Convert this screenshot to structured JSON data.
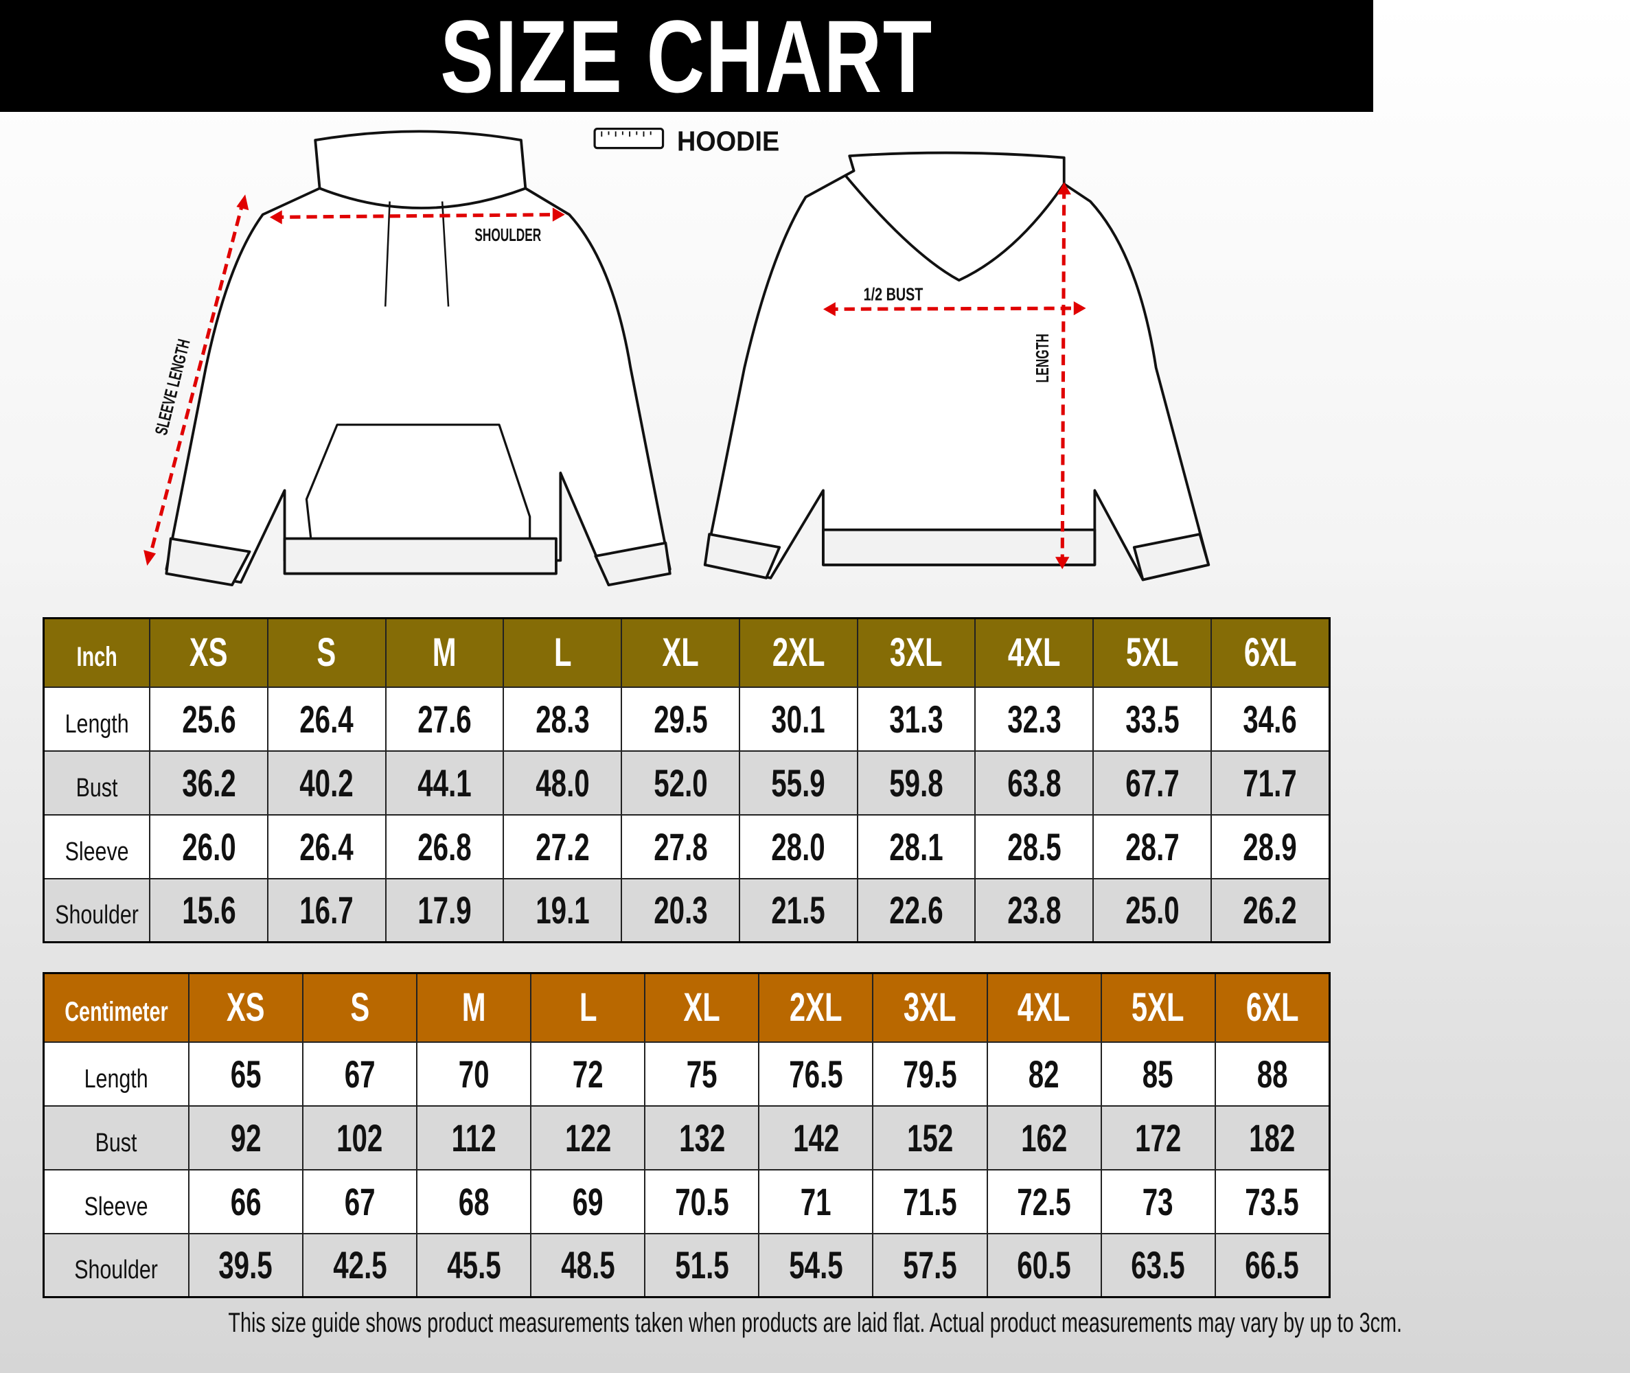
{
  "title": "SIZE CHART",
  "product": {
    "label": "HOODIE",
    "icon": "ruler-icon"
  },
  "diagram_labels": {
    "shoulder": "SHOULDER",
    "sleeve_length": "SLEEVE LENGTH",
    "half_bust": "1/2 BUST",
    "length": "LENGTH"
  },
  "colors": {
    "inch_header": "#856c06",
    "cm_header": "#b96800",
    "arrow": "#e00000"
  },
  "sizes": [
    "XS",
    "S",
    "M",
    "L",
    "XL",
    "2XL",
    "3XL",
    "4XL",
    "5XL",
    "6XL"
  ],
  "inch_table": {
    "unit": "Inch",
    "rows": [
      {
        "label": "Length",
        "values": [
          "25.6",
          "26.4",
          "27.6",
          "28.3",
          "29.5",
          "30.1",
          "31.3",
          "32.3",
          "33.5",
          "34.6"
        ]
      },
      {
        "label": "Bust",
        "values": [
          "36.2",
          "40.2",
          "44.1",
          "48.0",
          "52.0",
          "55.9",
          "59.8",
          "63.8",
          "67.7",
          "71.7"
        ]
      },
      {
        "label": "Sleeve",
        "values": [
          "26.0",
          "26.4",
          "26.8",
          "27.2",
          "27.8",
          "28.0",
          "28.1",
          "28.5",
          "28.7",
          "28.9"
        ]
      },
      {
        "label": "Shoulder",
        "values": [
          "15.6",
          "16.7",
          "17.9",
          "19.1",
          "20.3",
          "21.5",
          "22.6",
          "23.8",
          "25.0",
          "26.2"
        ]
      }
    ]
  },
  "cm_table": {
    "unit": "Centimeter",
    "rows": [
      {
        "label": "Length",
        "values": [
          "65",
          "67",
          "70",
          "72",
          "75",
          "76.5",
          "79.5",
          "82",
          "85",
          "88"
        ]
      },
      {
        "label": "Bust",
        "values": [
          "92",
          "102",
          "112",
          "122",
          "132",
          "142",
          "152",
          "162",
          "172",
          "182"
        ]
      },
      {
        "label": "Sleeve",
        "values": [
          "66",
          "67",
          "68",
          "69",
          "70.5",
          "71",
          "71.5",
          "72.5",
          "73",
          "73.5"
        ]
      },
      {
        "label": "Shoulder",
        "values": [
          "39.5",
          "42.5",
          "45.5",
          "48.5",
          "51.5",
          "54.5",
          "57.5",
          "60.5",
          "63.5",
          "66.5"
        ]
      }
    ]
  },
  "footnote": "This size guide shows product measurements taken when products are laid flat. Actual product measurements may vary by up to 3cm."
}
